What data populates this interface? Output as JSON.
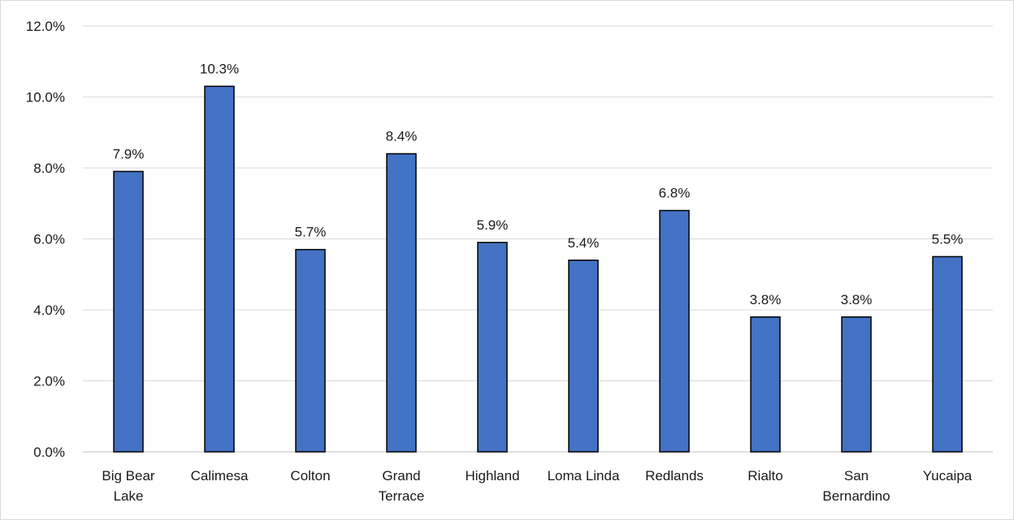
{
  "chart_data": {
    "type": "bar",
    "categories": [
      [
        "Big Bear",
        "Lake"
      ],
      [
        "Calimesa"
      ],
      [
        "Colton"
      ],
      [
        "Grand",
        "Terrace"
      ],
      [
        "Highland"
      ],
      [
        "Loma Linda"
      ],
      [
        "Redlands"
      ],
      [
        "Rialto"
      ],
      [
        "San",
        "Bernardino"
      ],
      [
        "Yucaipa"
      ]
    ],
    "values": [
      7.9,
      10.3,
      5.7,
      8.4,
      5.9,
      5.4,
      6.8,
      3.8,
      3.8,
      5.5
    ],
    "data_labels": [
      "7.9%",
      "10.3%",
      "5.7%",
      "8.4%",
      "5.9%",
      "5.4%",
      "6.8%",
      "3.8%",
      "3.8%",
      "5.5%"
    ],
    "y_ticks": [
      0,
      2,
      4,
      6,
      8,
      10,
      12
    ],
    "y_tick_labels": [
      "0.0%",
      "2.0%",
      "4.0%",
      "6.0%",
      "8.0%",
      "10.0%",
      "12.0%"
    ],
    "ylim": [
      0,
      12
    ],
    "grid": true,
    "legend": "none",
    "bar_color": "#4472c4",
    "bar_outline_color": "#000000"
  }
}
